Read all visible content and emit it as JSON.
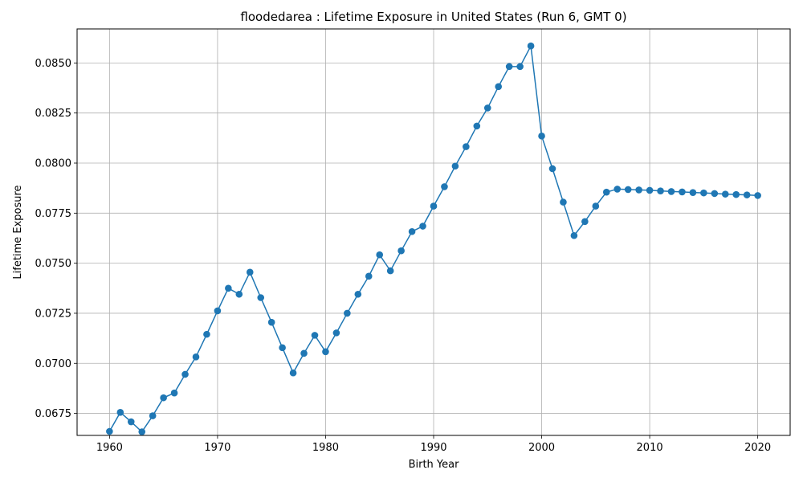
{
  "chart_data": {
    "type": "line",
    "title": "floodedarea : Lifetime Exposure in United States (Run 6, GMT 0)",
    "xlabel": "Birth Year",
    "ylabel": "Lifetime Exposure",
    "xlim": [
      1957,
      2023
    ],
    "ylim": [
      0.0664,
      0.0867
    ],
    "grid": true,
    "x_ticks": [
      1960,
      1970,
      1980,
      1990,
      2000,
      2010,
      2020
    ],
    "y_ticks": [
      0.0675,
      0.07,
      0.0725,
      0.075,
      0.0775,
      0.08,
      0.0825,
      0.085
    ],
    "y_tick_labels": [
      "0.0675",
      "0.0700",
      "0.0725",
      "0.0750",
      "0.0775",
      "0.0800",
      "0.0825",
      "0.0850"
    ],
    "line_color": "#1f77b4",
    "series": [
      {
        "x": [
          1960,
          1961,
          1962,
          1963,
          1964,
          1965,
          1966,
          1967,
          1968,
          1969,
          1970,
          1971,
          1972,
          1973,
          1974,
          1975,
          1976,
          1977,
          1978,
          1979,
          1980,
          1981,
          1982,
          1983,
          1984,
          1985,
          1986,
          1987,
          1988,
          1989,
          1990,
          1991,
          1992,
          1993,
          1994,
          1995,
          1996,
          1997,
          1998,
          1999,
          2000,
          2001,
          2002,
          2003,
          2004,
          2005,
          2006,
          2007,
          2008,
          2009,
          2010,
          2011,
          2012,
          2013,
          2014,
          2015,
          2016,
          2017,
          2018,
          2019,
          2020
        ],
        "values": [
          0.0666,
          0.06755,
          0.06708,
          0.06658,
          0.06738,
          0.06828,
          0.06852,
          0.06945,
          0.07032,
          0.07145,
          0.07262,
          0.07375,
          0.07345,
          0.07455,
          0.07328,
          0.07205,
          0.07078,
          0.06952,
          0.0705,
          0.0714,
          0.07058,
          0.07152,
          0.0725,
          0.07345,
          0.07435,
          0.07542,
          0.07462,
          0.07562,
          0.07658,
          0.07685,
          0.07785,
          0.07882,
          0.07985,
          0.08082,
          0.08185,
          0.08275,
          0.08382,
          0.08482,
          0.08482,
          0.08585,
          0.08135,
          0.07972,
          0.07805,
          0.07638,
          0.07708,
          0.07785,
          0.07855,
          0.0787,
          0.07868,
          0.07866,
          0.07864,
          0.07861,
          0.07858,
          0.07856,
          0.07853,
          0.07851,
          0.07848,
          0.07845,
          0.07843,
          0.07841,
          0.07838
        ]
      }
    ]
  }
}
